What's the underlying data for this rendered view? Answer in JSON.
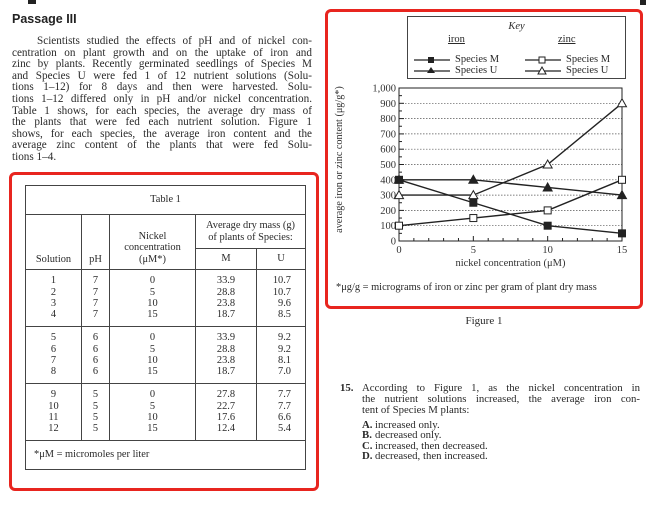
{
  "passage": {
    "title": "Passage III",
    "lines": [
      "Scientists studied the effects of pH and of nickel con-",
      "centration on plant growth and on the uptake of iron and",
      "zinc by plants. Recently germinated seedlings of Species M",
      "and Species U were fed 1 of 12 nutrient solutions (Solu-",
      "tions 1–12) for 8 days and then were harvested. Solu-",
      "tions 1–12 differed only in pH and/or nickel concentration.",
      "Table 1 shows, for each species, the average dry mass of",
      "the plants that were fed each nutrient solution. Figure 1",
      "shows, for each species, the average iron content and the",
      "average zinc content of the plants that were fed Solu-",
      "tions 1–4."
    ]
  },
  "table": {
    "title": "Table 1",
    "headers": {
      "solution": "Solution",
      "ph": "pH",
      "nickel": "Nickel concentration (μM*)",
      "mass_group": "Average dry mass (g) of plants of Species:",
      "m": "M",
      "u": "U"
    },
    "groups": [
      {
        "solution": [
          "1",
          "2",
          "3",
          "4"
        ],
        "ph": [
          "7",
          "7",
          "7",
          "7"
        ],
        "nickel": [
          "0",
          "5",
          "10",
          "15"
        ],
        "m": [
          "33.9",
          "28.8",
          "23.8",
          "18.7"
        ],
        "u": [
          "10.7",
          "10.7",
          "9.6",
          "8.5"
        ]
      },
      {
        "solution": [
          "5",
          "6",
          "7",
          "8"
        ],
        "ph": [
          "6",
          "6",
          "6",
          "6"
        ],
        "nickel": [
          "0",
          "5",
          "10",
          "15"
        ],
        "m": [
          "33.9",
          "28.8",
          "23.8",
          "18.7"
        ],
        "u": [
          "9.2",
          "9.2",
          "8.1",
          "7.0"
        ]
      },
      {
        "solution": [
          "9",
          "10",
          "11",
          "12"
        ],
        "ph": [
          "5",
          "5",
          "5",
          "5"
        ],
        "nickel": [
          "0",
          "5",
          "10",
          "15"
        ],
        "m": [
          "27.8",
          "22.7",
          "17.6",
          "12.4"
        ],
        "u": [
          "7.7",
          "7.7",
          "6.6",
          "5.4"
        ]
      }
    ],
    "footnote": "*μM = micromoles per liter"
  },
  "chart_data": {
    "type": "line",
    "title": "",
    "caption": "Figure 1",
    "xlabel": "nickel concentration (μM)",
    "ylabel": "average iron or zinc content (μg/g*)",
    "xlim": [
      0,
      15
    ],
    "ylim": [
      0,
      1000
    ],
    "x_ticks": [
      "0",
      "5",
      "10",
      "15"
    ],
    "y_ticks": [
      "0",
      "100",
      "200",
      "300",
      "400",
      "500",
      "600",
      "700",
      "800",
      "900",
      "1,000"
    ],
    "grid": "horizontal dotted",
    "x": [
      0,
      5,
      10,
      15
    ],
    "legend": {
      "title": "Key",
      "iron_label": "iron",
      "zinc_label": "zinc",
      "placement": "top"
    },
    "series": [
      {
        "name": "Species M",
        "group": "iron",
        "marker": "filled-square",
        "values": [
          400,
          250,
          100,
          50
        ]
      },
      {
        "name": "Species U",
        "group": "iron",
        "marker": "filled-triangle",
        "values": [
          400,
          400,
          350,
          300
        ]
      },
      {
        "name": "Species M",
        "group": "zinc",
        "marker": "open-square",
        "values": [
          100,
          150,
          200,
          400
        ]
      },
      {
        "name": "Species U",
        "group": "zinc",
        "marker": "open-triangle",
        "values": [
          300,
          300,
          500,
          900
        ]
      }
    ],
    "footnote": "*μg/g = micrograms of iron or zinc per gram of plant dry mass"
  },
  "highlight_color": "#e8251f",
  "question": {
    "number": "15.",
    "lines": [
      "According to Figure 1, as the nickel concentration in",
      "the nutrient solutions increased, the average iron con-",
      "tent of Species M plants:"
    ],
    "options": [
      {
        "letter": "A.",
        "text": "increased only."
      },
      {
        "letter": "B.",
        "text": "decreased only."
      },
      {
        "letter": "C.",
        "text": "increased, then decreased."
      },
      {
        "letter": "D.",
        "text": "decreased, then increased."
      }
    ]
  }
}
